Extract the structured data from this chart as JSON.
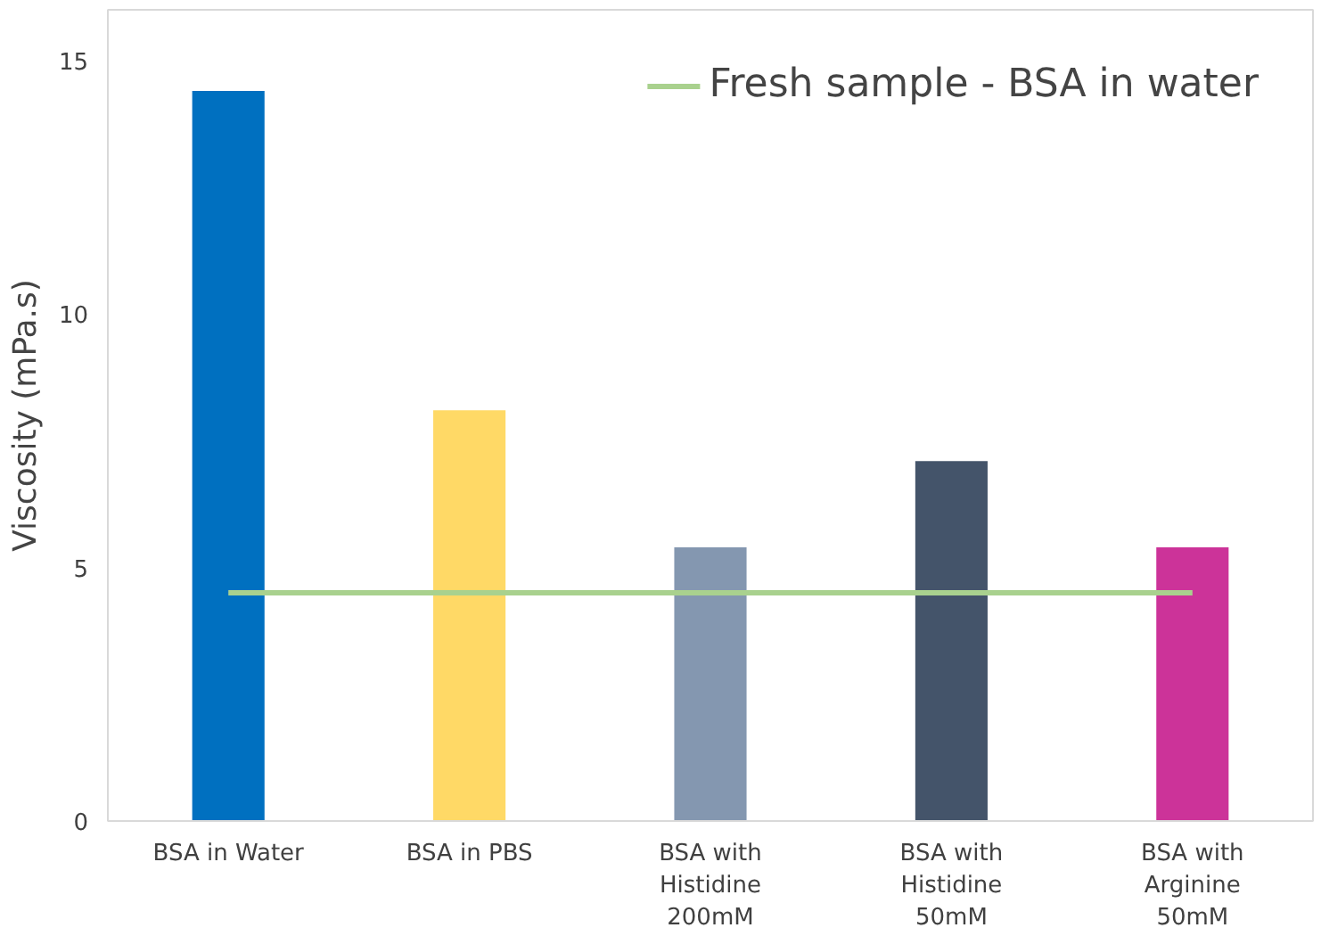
{
  "chart_data": {
    "type": "bar",
    "ylabel": "Viscosity (mPa.s)",
    "categories": [
      "BSA in Water",
      "BSA in PBS",
      "BSA with Histidine 200mM",
      "BSA with Histidine 50mM",
      "BSA with Arginine 50mM"
    ],
    "series": [
      {
        "colors": [
          "#0070c0",
          "#ffd966",
          "#8497b0",
          "#44546a",
          "#cc3399"
        ],
        "values": [
          14.4,
          8.1,
          5.4,
          7.1,
          5.4
        ]
      },
      {
        "type": "line",
        "name": "Fresh sample - BSA in water",
        "color": "#a9d18e",
        "values": [
          4.5,
          4.5,
          4.5,
          4.5,
          4.5
        ]
      }
    ],
    "ylim": [
      0,
      16
    ],
    "yticks": [
      0,
      5,
      10,
      15
    ],
    "grid": false,
    "legend": "top right"
  }
}
